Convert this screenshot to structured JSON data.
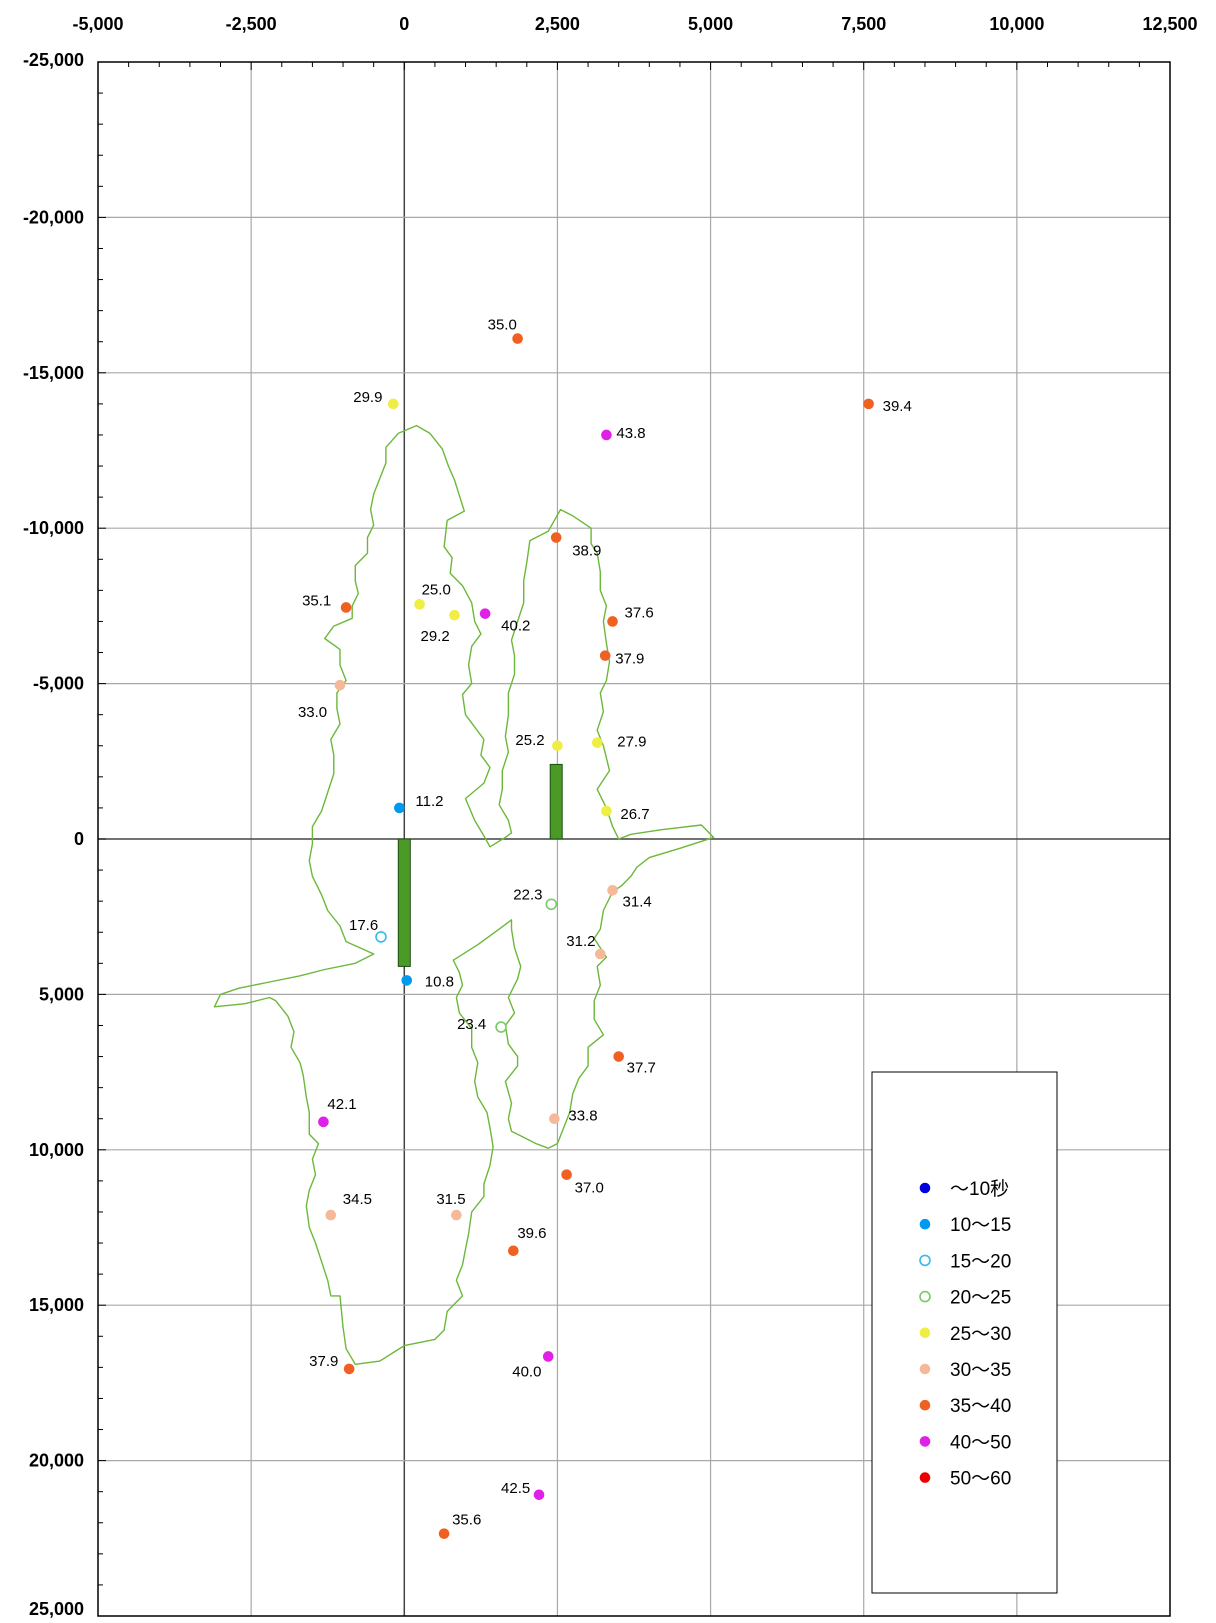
{
  "chart_data": {
    "type": "scatter",
    "title": "",
    "xlabel": "",
    "ylabel": "",
    "xlim": [
      -5000,
      12500
    ],
    "ylim": [
      -25000,
      25000
    ],
    "y_inverted": true,
    "grid": true,
    "x_ticks": [
      -5000,
      -2500,
      0,
      2500,
      5000,
      7500,
      10000,
      12500
    ],
    "x_tick_labels": [
      "-5,000",
      "-2,500",
      "0",
      "2,500",
      "5,000",
      "7,500",
      "10,000",
      "12,500"
    ],
    "y_ticks": [
      -25000,
      -20000,
      -15000,
      -10000,
      -5000,
      0,
      5000,
      10000,
      15000,
      20000,
      25000
    ],
    "y_tick_labels": [
      "-25,000",
      "-20,000",
      "-15,000",
      "-10,000",
      "-5,000",
      "0",
      "5,000",
      "10,000",
      "15,000",
      "20,000",
      "25,000"
    ],
    "legend": {
      "position": "bottom-right",
      "entries": [
        {
          "label": "～10秒",
          "color": "#0000dd",
          "hollow": false
        },
        {
          "label": "10～15",
          "color": "#0099ee",
          "hollow": false
        },
        {
          "label": "15～20",
          "color": "#33bbee",
          "hollow": true
        },
        {
          "label": "20～25",
          "color": "#77cc66",
          "hollow": true
        },
        {
          "label": "25～30",
          "color": "#eeee44",
          "hollow": false
        },
        {
          "label": "30～35",
          "color": "#f5b898",
          "hollow": false
        },
        {
          "label": "35～40",
          "color": "#f06020",
          "hollow": false
        },
        {
          "label": "40～50",
          "color": "#e020e8",
          "hollow": false
        },
        {
          "label": "50～60",
          "color": "#ee0000",
          "hollow": false
        }
      ]
    },
    "points": [
      {
        "x": 1850,
        "y": -16100,
        "label": "35.0",
        "cat": 6,
        "dx": -30,
        "dy": -9
      },
      {
        "x": -180,
        "y": -14000,
        "label": "29.9",
        "cat": 4,
        "dx": -40,
        "dy": -2
      },
      {
        "x": 7580,
        "y": -14000,
        "label": "39.4",
        "cat": 6,
        "dx": 14,
        "dy": 7
      },
      {
        "x": 3300,
        "y": -13000,
        "label": "43.8",
        "cat": 7,
        "dx": 10,
        "dy": 3
      },
      {
        "x": 2480,
        "y": -9700,
        "label": "38.9",
        "cat": 6,
        "dx": 16,
        "dy": 18
      },
      {
        "x": -950,
        "y": -7450,
        "label": "35.1",
        "cat": 6,
        "dx": -44,
        "dy": -2
      },
      {
        "x": 250,
        "y": -7550,
        "label": "25.0",
        "cat": 4,
        "dx": 2,
        "dy": -10
      },
      {
        "x": 820,
        "y": -7200,
        "label": "29.2",
        "cat": 4,
        "dx": -34,
        "dy": 26
      },
      {
        "x": 1320,
        "y": -7250,
        "label": "40.2",
        "cat": 7,
        "dx": 16,
        "dy": 17
      },
      {
        "x": 3400,
        "y": -7000,
        "label": "37.6",
        "cat": 6,
        "dx": 12,
        "dy": -4
      },
      {
        "x": 3280,
        "y": -5900,
        "label": "37.9",
        "cat": 6,
        "dx": 10,
        "dy": 8
      },
      {
        "x": -1050,
        "y": -4950,
        "label": "33.0",
        "cat": 5,
        "dx": -42,
        "dy": 32
      },
      {
        "x": 2500,
        "y": -3000,
        "label": "25.2",
        "cat": 4,
        "dx": -42,
        "dy": -1
      },
      {
        "x": 3150,
        "y": -3100,
        "label": "27.9",
        "cat": 4,
        "dx": 20,
        "dy": 4
      },
      {
        "x": -80,
        "y": -1000,
        "label": "11.2",
        "cat": 1,
        "dx": 16,
        "dy": -2
      },
      {
        "x": 3300,
        "y": -900,
        "label": "26.7",
        "cat": 4,
        "dx": 14,
        "dy": 8
      },
      {
        "x": 3400,
        "y": 1650,
        "label": "31.4",
        "cat": 5,
        "dx": 10,
        "dy": 16
      },
      {
        "x": 2400,
        "y": 2100,
        "label": "22.3",
        "cat": 3,
        "dx": -38,
        "dy": -5
      },
      {
        "x": -380,
        "y": 3150,
        "label": "17.6",
        "cat": 2,
        "dx": -32,
        "dy": -7
      },
      {
        "x": 3200,
        "y": 3700,
        "label": "31.2",
        "cat": 5,
        "dx": -34,
        "dy": -8
      },
      {
        "x": 40,
        "y": 4550,
        "label": "10.8",
        "cat": 1,
        "dx": 18,
        "dy": 6
      },
      {
        "x": 1580,
        "y": 6050,
        "label": "23.4",
        "cat": 3,
        "dx": -44,
        "dy": 2
      },
      {
        "x": 3500,
        "y": 7000,
        "label": "37.7",
        "cat": 6,
        "dx": 8,
        "dy": 16
      },
      {
        "x": -1320,
        "y": 9100,
        "label": "42.1",
        "cat": 7,
        "dx": 4,
        "dy": -13
      },
      {
        "x": 2450,
        "y": 9000,
        "label": "33.8",
        "cat": 5,
        "dx": 14,
        "dy": 2
      },
      {
        "x": 2650,
        "y": 10800,
        "label": "37.0",
        "cat": 6,
        "dx": 8,
        "dy": 18
      },
      {
        "x": -1200,
        "y": 12100,
        "label": "34.5",
        "cat": 5,
        "dx": 12,
        "dy": -11
      },
      {
        "x": 850,
        "y": 12100,
        "label": "31.5",
        "cat": 5,
        "dx": -20,
        "dy": -11
      },
      {
        "x": 1780,
        "y": 13250,
        "label": "39.6",
        "cat": 6,
        "dx": 4,
        "dy": -13
      },
      {
        "x": -900,
        "y": 17050,
        "label": "37.9",
        "cat": 6,
        "dx": -40,
        "dy": -3
      },
      {
        "x": 2350,
        "y": 16650,
        "label": "40.0",
        "cat": 7,
        "dx": -36,
        "dy": 20
      },
      {
        "x": 2200,
        "y": 21100,
        "label": "42.5",
        "cat": 7,
        "dx": -38,
        "dy": -2
      },
      {
        "x": 650,
        "y": 22350,
        "label": "35.6",
        "cat": 6,
        "dx": 8,
        "dy": -9
      }
    ],
    "bars": [
      {
        "x": 0,
        "y_from": 0,
        "y_to": 4100
      },
      {
        "x": 2480,
        "y_from": -2400,
        "y_to": 0
      }
    ],
    "outline_color": "#6cb83a",
    "outlines": [
      [
        [
          -100,
          -13050
        ],
        [
          200,
          -13300
        ],
        [
          420,
          -13050
        ],
        [
          620,
          -12550
        ],
        [
          720,
          -12000
        ],
        [
          820,
          -11550
        ],
        [
          900,
          -11050
        ],
        [
          980,
          -10550
        ],
        [
          700,
          -10250
        ],
        [
          650,
          -9400
        ],
        [
          780,
          -9050
        ],
        [
          750,
          -8550
        ],
        [
          950,
          -8150
        ],
        [
          1100,
          -7600
        ],
        [
          1150,
          -7000
        ],
        [
          1250,
          -6600
        ],
        [
          1100,
          -6200
        ],
        [
          1050,
          -5600
        ],
        [
          1100,
          -5000
        ],
        [
          950,
          -4650
        ],
        [
          1000,
          -4000
        ],
        [
          1150,
          -3600
        ],
        [
          1300,
          -3200
        ],
        [
          1250,
          -2700
        ],
        [
          1400,
          -2300
        ],
        [
          1300,
          -1800
        ],
        [
          1000,
          -1300
        ],
        [
          1150,
          -600
        ],
        [
          1300,
          -100
        ],
        [
          1400,
          250
        ],
        [
          1650,
          -50
        ],
        [
          1750,
          -200
        ],
        [
          1700,
          -600
        ],
        [
          1550,
          -1100
        ],
        [
          1600,
          -1600
        ],
        [
          1600,
          -2200
        ],
        [
          1700,
          -2800
        ],
        [
          1650,
          -3300
        ],
        [
          1700,
          -4000
        ],
        [
          1700,
          -4700
        ],
        [
          1800,
          -5300
        ],
        [
          1800,
          -5900
        ],
        [
          1750,
          -6400
        ],
        [
          1850,
          -7000
        ],
        [
          1950,
          -7600
        ],
        [
          1950,
          -8300
        ],
        [
          2000,
          -8900
        ],
        [
          2050,
          -9600
        ],
        [
          2350,
          -9900
        ],
        [
          2550,
          -10600
        ],
        [
          2750,
          -10400
        ],
        [
          3050,
          -10000
        ],
        [
          3050,
          -9500
        ],
        [
          3150,
          -9200
        ],
        [
          3200,
          -8600
        ],
        [
          3200,
          -8000
        ],
        [
          3300,
          -7500
        ],
        [
          3250,
          -7000
        ],
        [
          3300,
          -6300
        ],
        [
          3350,
          -5700
        ],
        [
          3300,
          -5100
        ],
        [
          3200,
          -4700
        ],
        [
          3250,
          -4100
        ],
        [
          3150,
          -3500
        ],
        [
          3250,
          -3000
        ],
        [
          3350,
          -2200
        ],
        [
          3150,
          -1600
        ],
        [
          3300,
          -1000
        ],
        [
          3400,
          -400
        ],
        [
          3500,
          0
        ],
        [
          3700,
          -150
        ],
        [
          4200,
          -300
        ],
        [
          4850,
          -450
        ],
        [
          5050,
          -50
        ],
        [
          4500,
          300
        ],
        [
          4000,
          600
        ],
        [
          3800,
          900
        ],
        [
          3700,
          1200
        ],
        [
          3550,
          1500
        ],
        [
          3400,
          1700
        ],
        [
          3250,
          2300
        ],
        [
          3200,
          2900
        ],
        [
          3100,
          3200
        ],
        [
          3300,
          3800
        ],
        [
          3150,
          4100
        ],
        [
          3200,
          4700
        ],
        [
          3100,
          5200
        ],
        [
          3100,
          5800
        ],
        [
          3250,
          6300
        ],
        [
          3000,
          6700
        ],
        [
          3000,
          7300
        ],
        [
          2850,
          7700
        ],
        [
          2750,
          8200
        ],
        [
          2700,
          8800
        ],
        [
          2600,
          9300
        ],
        [
          2500,
          9800
        ],
        [
          2350,
          9950
        ],
        [
          2150,
          9800
        ],
        [
          1950,
          9600
        ],
        [
          1750,
          9400
        ],
        [
          1700,
          9000
        ],
        [
          1750,
          8500
        ],
        [
          1650,
          7800
        ],
        [
          1850,
          7300
        ],
        [
          1850,
          7000
        ],
        [
          1700,
          6600
        ],
        [
          1650,
          6000
        ],
        [
          1800,
          5600
        ],
        [
          1700,
          5100
        ],
        [
          1850,
          4500
        ],
        [
          1900,
          4100
        ],
        [
          1800,
          3500
        ],
        [
          1750,
          2900
        ],
        [
          1750,
          2600
        ],
        [
          1550,
          2900
        ],
        [
          1200,
          3400
        ],
        [
          800,
          3900
        ],
        [
          900,
          4300
        ],
        [
          950,
          4700
        ],
        [
          850,
          5100
        ],
        [
          900,
          5600
        ],
        [
          1100,
          6100
        ],
        [
          1100,
          6700
        ],
        [
          1200,
          7200
        ],
        [
          1150,
          7800
        ],
        [
          1200,
          8300
        ],
        [
          1350,
          8800
        ],
        [
          1400,
          9300
        ],
        [
          1450,
          9900
        ],
        [
          1400,
          10500
        ],
        [
          1300,
          11100
        ],
        [
          1300,
          11500
        ],
        [
          1100,
          12000
        ],
        [
          1050,
          12700
        ],
        [
          1000,
          13200
        ],
        [
          950,
          13700
        ],
        [
          850,
          14200
        ],
        [
          950,
          14700
        ],
        [
          700,
          15200
        ],
        [
          650,
          15800
        ],
        [
          500,
          16100
        ],
        [
          0,
          16300
        ],
        [
          -400,
          16800
        ],
        [
          -800,
          16900
        ],
        [
          -950,
          16400
        ],
        [
          -1000,
          15700
        ],
        [
          -1050,
          14700
        ],
        [
          -1200,
          14700
        ],
        [
          -1250,
          14200
        ],
        [
          -1350,
          13600
        ],
        [
          -1450,
          13000
        ],
        [
          -1550,
          12500
        ],
        [
          -1600,
          11800
        ],
        [
          -1550,
          11300
        ],
        [
          -1450,
          10800
        ],
        [
          -1500,
          10300
        ],
        [
          -1400,
          9800
        ],
        [
          -1550,
          9500
        ],
        [
          -1550,
          8800
        ],
        [
          -1600,
          8300
        ],
        [
          -1650,
          7600
        ],
        [
          -1700,
          7200
        ],
        [
          -1850,
          6700
        ],
        [
          -1800,
          6200
        ],
        [
          -1900,
          5700
        ],
        [
          -2100,
          5200
        ],
        [
          -2200,
          5100
        ],
        [
          -2600,
          5300
        ],
        [
          -3100,
          5400
        ],
        [
          -3000,
          5000
        ],
        [
          -2700,
          4800
        ],
        [
          -2200,
          4600
        ],
        [
          -1700,
          4400
        ],
        [
          -1300,
          4200
        ],
        [
          -800,
          4000
        ],
        [
          -500,
          3700
        ],
        [
          -950,
          3300
        ],
        [
          -1050,
          2800
        ],
        [
          -1250,
          2300
        ],
        [
          -1350,
          1800
        ],
        [
          -1500,
          1200
        ],
        [
          -1550,
          700
        ],
        [
          -1500,
          150
        ],
        [
          -1500,
          -400
        ],
        [
          -1350,
          -900
        ],
        [
          -1250,
          -1500
        ],
        [
          -1150,
          -2100
        ],
        [
          -1150,
          -2700
        ],
        [
          -1200,
          -3200
        ],
        [
          -1050,
          -3700
        ],
        [
          -1100,
          -4200
        ],
        [
          -1100,
          -4700
        ],
        [
          -950,
          -5100
        ],
        [
          -1050,
          -5600
        ],
        [
          -1050,
          -6100
        ],
        [
          -1300,
          -6450
        ],
        [
          -1150,
          -6850
        ],
        [
          -850,
          -7100
        ],
        [
          -850,
          -7500
        ],
        [
          -750,
          -7900
        ],
        [
          -800,
          -8300
        ],
        [
          -800,
          -8800
        ],
        [
          -600,
          -9200
        ],
        [
          -600,
          -9700
        ],
        [
          -500,
          -10100
        ],
        [
          -550,
          -10600
        ],
        [
          -500,
          -11100
        ],
        [
          -400,
          -11600
        ],
        [
          -300,
          -12100
        ],
        [
          -300,
          -12600
        ],
        [
          -100,
          -13050
        ]
      ]
    ]
  }
}
